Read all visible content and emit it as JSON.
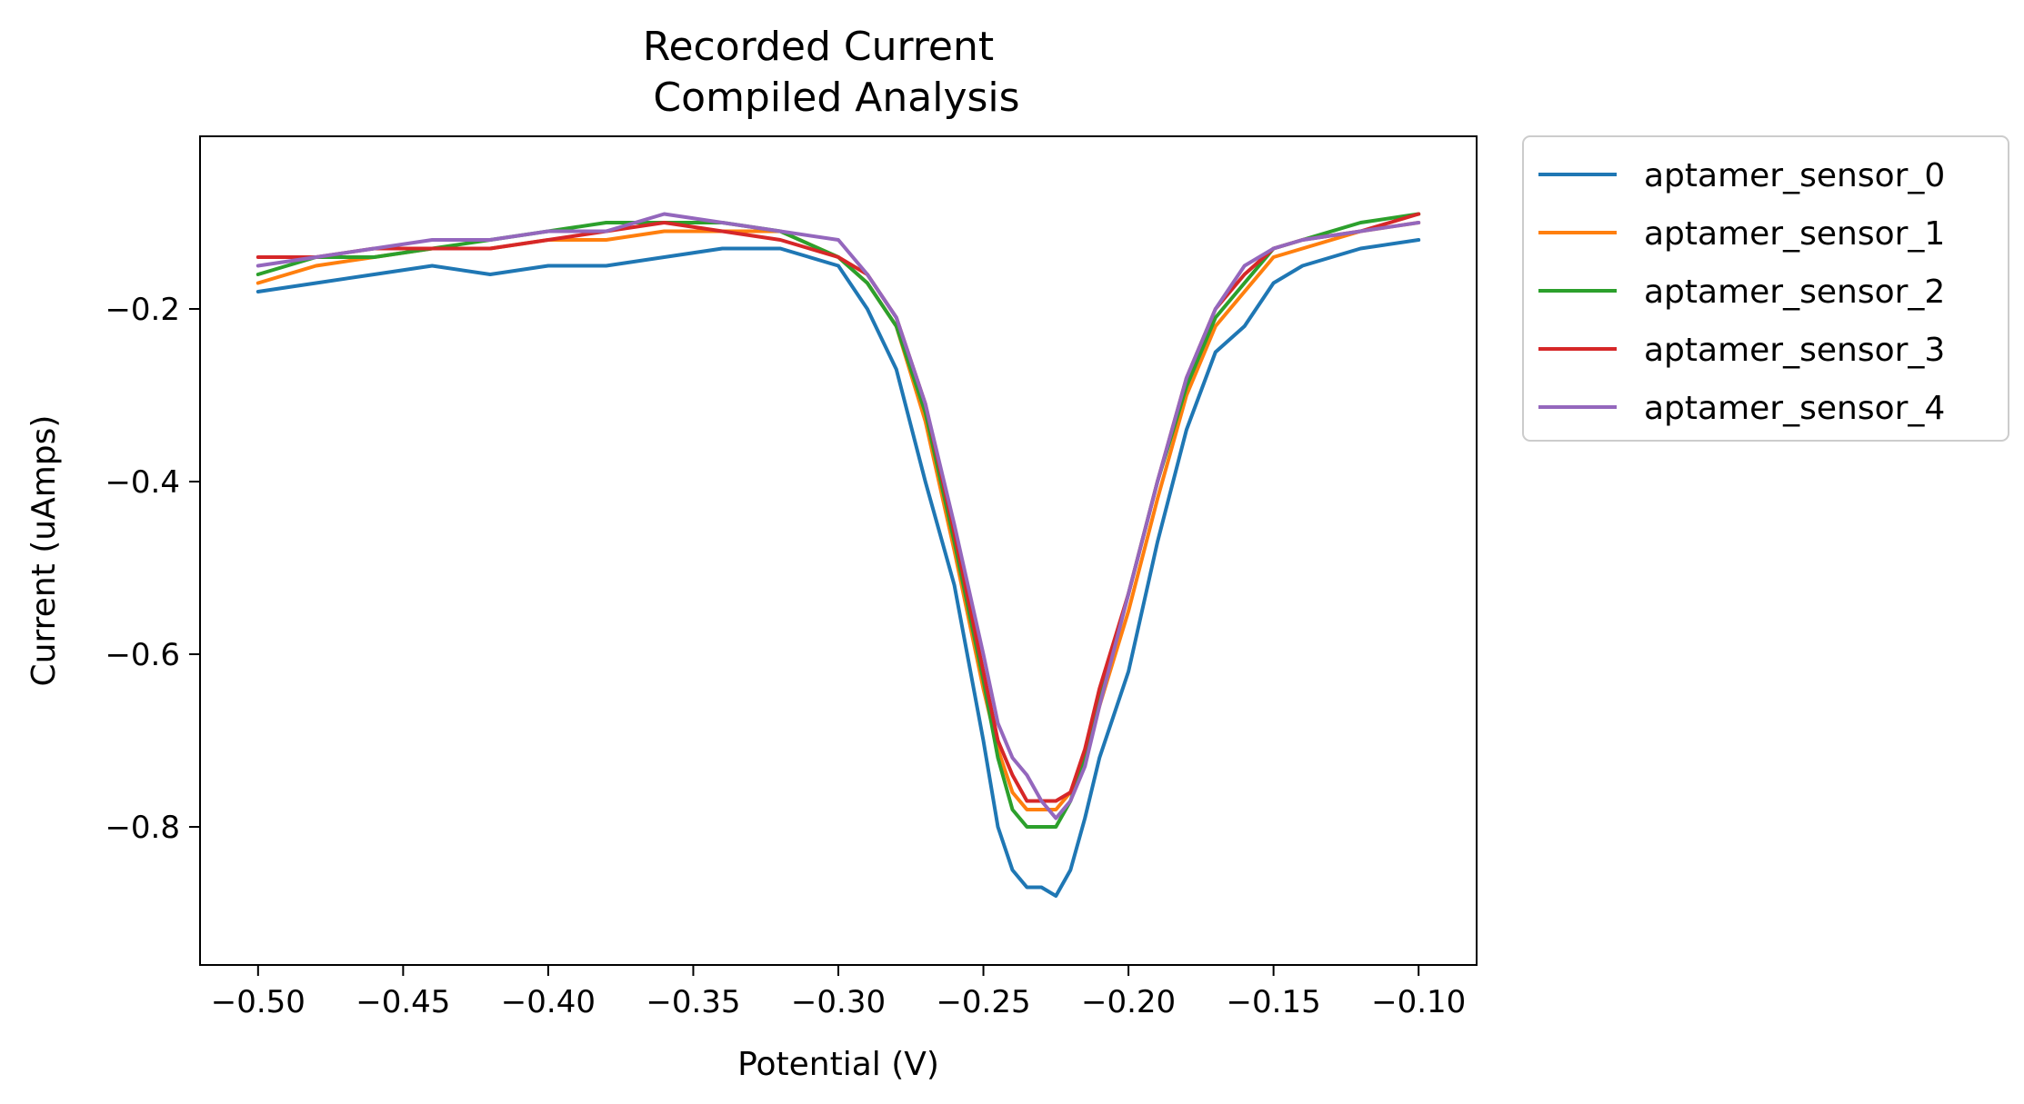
{
  "chart_data": {
    "type": "line",
    "title_lines": [
      "Recorded Current",
      "Compiled Analysis"
    ],
    "xlabel": "Potential (V)",
    "ylabel": "Current (uAmps)",
    "xlim": [
      -0.52,
      -0.08
    ],
    "ylim": [
      -0.96,
      0.0
    ],
    "x_ticks": [
      -0.5,
      -0.45,
      -0.4,
      -0.35,
      -0.3,
      -0.25,
      -0.2,
      -0.15,
      -0.1
    ],
    "x_tick_labels": [
      "−0.50",
      "−0.45",
      "−0.40",
      "−0.35",
      "−0.30",
      "−0.25",
      "−0.20",
      "−0.15",
      "−0.10"
    ],
    "y_ticks": [
      -0.2,
      -0.4,
      -0.6,
      -0.8
    ],
    "y_tick_labels": [
      "−0.2",
      "−0.4",
      "−0.6",
      "−0.8"
    ],
    "legend_position": "outside-upper-right",
    "grid": false,
    "x": [
      -0.5,
      -0.48,
      -0.46,
      -0.44,
      -0.42,
      -0.4,
      -0.38,
      -0.36,
      -0.34,
      -0.32,
      -0.3,
      -0.29,
      -0.28,
      -0.27,
      -0.26,
      -0.25,
      -0.245,
      -0.24,
      -0.235,
      -0.23,
      -0.225,
      -0.22,
      -0.215,
      -0.21,
      -0.2,
      -0.19,
      -0.18,
      -0.17,
      -0.16,
      -0.15,
      -0.14,
      -0.12,
      -0.1
    ],
    "series": [
      {
        "name": "aptamer_sensor_0",
        "color": "#1f77b4",
        "values": [
          -0.18,
          -0.17,
          -0.16,
          -0.15,
          -0.16,
          -0.15,
          -0.15,
          -0.14,
          -0.13,
          -0.13,
          -0.15,
          -0.2,
          -0.27,
          -0.4,
          -0.52,
          -0.7,
          -0.8,
          -0.85,
          -0.87,
          -0.87,
          -0.88,
          -0.85,
          -0.79,
          -0.72,
          -0.62,
          -0.47,
          -0.34,
          -0.25,
          -0.22,
          -0.17,
          -0.15,
          -0.13,
          -0.12
        ]
      },
      {
        "name": "aptamer_sensor_1",
        "color": "#ff7f0e",
        "values": [
          -0.17,
          -0.15,
          -0.14,
          -0.13,
          -0.13,
          -0.12,
          -0.12,
          -0.11,
          -0.11,
          -0.11,
          -0.14,
          -0.17,
          -0.22,
          -0.33,
          -0.48,
          -0.64,
          -0.71,
          -0.76,
          -0.78,
          -0.78,
          -0.78,
          -0.76,
          -0.72,
          -0.66,
          -0.55,
          -0.42,
          -0.3,
          -0.22,
          -0.18,
          -0.14,
          -0.13,
          -0.11,
          -0.1
        ]
      },
      {
        "name": "aptamer_sensor_2",
        "color": "#2ca02c",
        "values": [
          -0.16,
          -0.14,
          -0.14,
          -0.13,
          -0.12,
          -0.11,
          -0.1,
          -0.1,
          -0.1,
          -0.11,
          -0.14,
          -0.17,
          -0.22,
          -0.32,
          -0.47,
          -0.63,
          -0.72,
          -0.78,
          -0.8,
          -0.8,
          -0.8,
          -0.77,
          -0.72,
          -0.65,
          -0.53,
          -0.4,
          -0.29,
          -0.21,
          -0.17,
          -0.13,
          -0.12,
          -0.1,
          -0.09
        ]
      },
      {
        "name": "aptamer_sensor_3",
        "color": "#d62728",
        "values": [
          -0.14,
          -0.14,
          -0.13,
          -0.13,
          -0.13,
          -0.12,
          -0.11,
          -0.1,
          -0.11,
          -0.12,
          -0.14,
          -0.16,
          -0.21,
          -0.31,
          -0.46,
          -0.62,
          -0.7,
          -0.74,
          -0.77,
          -0.77,
          -0.77,
          -0.76,
          -0.71,
          -0.64,
          -0.53,
          -0.4,
          -0.28,
          -0.2,
          -0.16,
          -0.13,
          -0.12,
          -0.11,
          -0.09
        ]
      },
      {
        "name": "aptamer_sensor_4",
        "color": "#9467bd",
        "values": [
          -0.15,
          -0.14,
          -0.13,
          -0.12,
          -0.12,
          -0.11,
          -0.11,
          -0.09,
          -0.1,
          -0.11,
          -0.12,
          -0.16,
          -0.21,
          -0.31,
          -0.45,
          -0.6,
          -0.68,
          -0.72,
          -0.74,
          -0.77,
          -0.79,
          -0.77,
          -0.73,
          -0.66,
          -0.53,
          -0.4,
          -0.28,
          -0.2,
          -0.15,
          -0.13,
          -0.12,
          -0.11,
          -0.1
        ]
      }
    ]
  }
}
